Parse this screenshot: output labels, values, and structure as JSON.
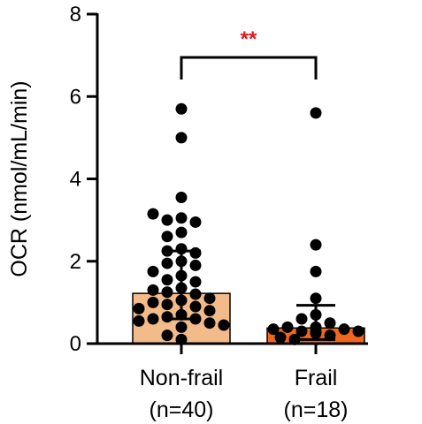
{
  "chart_data": {
    "type": "bar",
    "title": "",
    "ylabel": "OCR (nmol/mL/min)",
    "xlabel": "",
    "ylim": [
      0,
      8
    ],
    "yticks": [
      0,
      2,
      4,
      6,
      8
    ],
    "grid": false,
    "significance": {
      "label": "**",
      "color": "#e0191c",
      "between": [
        0,
        1
      ],
      "y": 7.0
    },
    "categories": [
      {
        "name": "Non-frail",
        "n_label": "(n=40)"
      },
      {
        "name": "Frail",
        "n_label": "(n=18)"
      }
    ],
    "bars": [
      {
        "category": "Non-frail",
        "mean": 1.22,
        "error_upper": 2.25,
        "error_lower": 0.6,
        "color": "#f4bb8a",
        "points": [
          5.7,
          5.0,
          3.55,
          3.05,
          3.0,
          2.95,
          3.15,
          2.7,
          2.6,
          2.3,
          2.25,
          2.2,
          2.0,
          1.95,
          1.9,
          1.75,
          1.65,
          1.55,
          1.5,
          1.35,
          1.3,
          1.25,
          1.2,
          1.1,
          1.05,
          1.0,
          0.95,
          0.9,
          0.85,
          0.8,
          0.7,
          0.65,
          0.6,
          0.6,
          0.55,
          0.5,
          0.45,
          0.4,
          0.2,
          0.1
        ]
      },
      {
        "category": "Frail",
        "mean": 0.38,
        "error_upper": 0.93,
        "error_lower": 0.1,
        "color": "#f2671e",
        "points": [
          5.6,
          2.4,
          1.75,
          1.1,
          0.7,
          0.6,
          0.5,
          0.4,
          0.4,
          0.35,
          0.35,
          0.3,
          0.3,
          0.3,
          0.25,
          0.2,
          0.15,
          0.1
        ]
      }
    ]
  }
}
